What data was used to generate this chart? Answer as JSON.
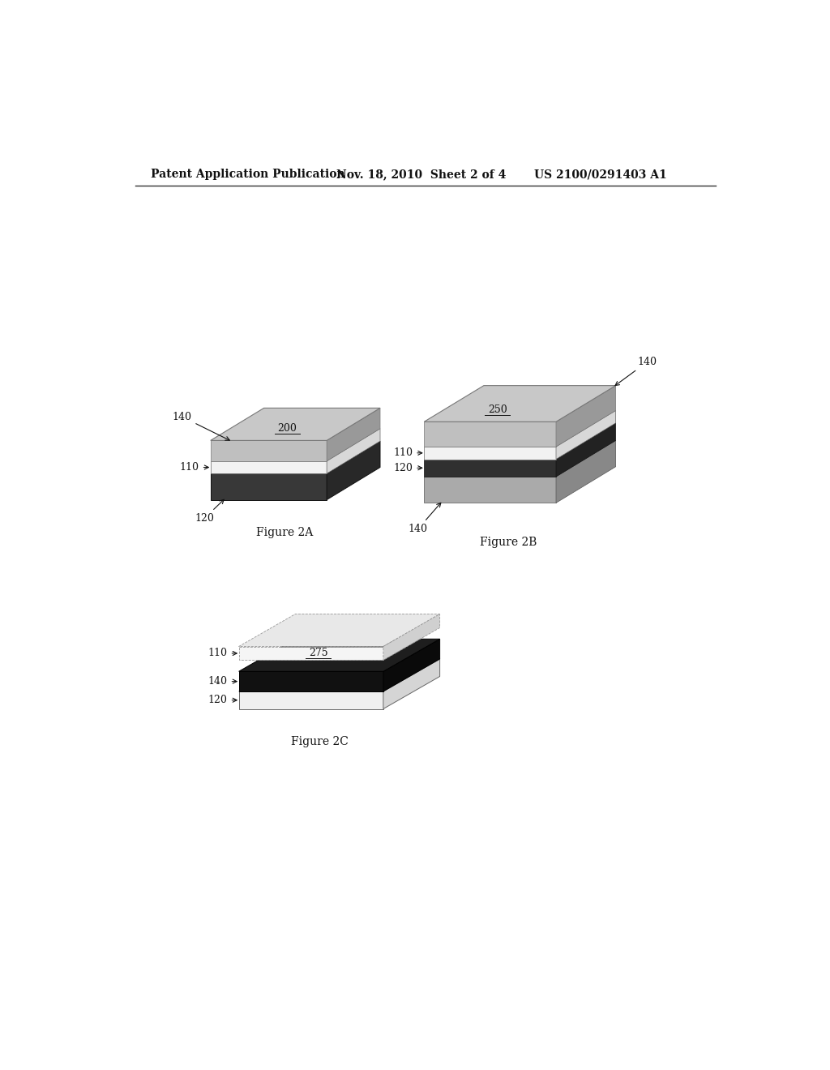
{
  "background_color": "#ffffff",
  "header_text": "Patent Application Publication",
  "header_date": "Nov. 18, 2010  Sheet 2 of 4",
  "header_patent": "US 2100/0291403 A1",
  "fig2A_label": "Figure 2A",
  "fig2B_label": "Figure 2B",
  "fig2C_label": "Figure 2C",
  "color_top_face": "#c0c0c0",
  "color_top_front": "#b8b8b8",
  "color_top_right": "#909090",
  "color_white_layer": "#f0f0f0",
  "color_white_right": "#d0d0d0",
  "color_dark_layer": "#303030",
  "color_dark_right": "#222222",
  "color_bot140_front": "#aaaaaa",
  "color_bot140_right": "#888888"
}
